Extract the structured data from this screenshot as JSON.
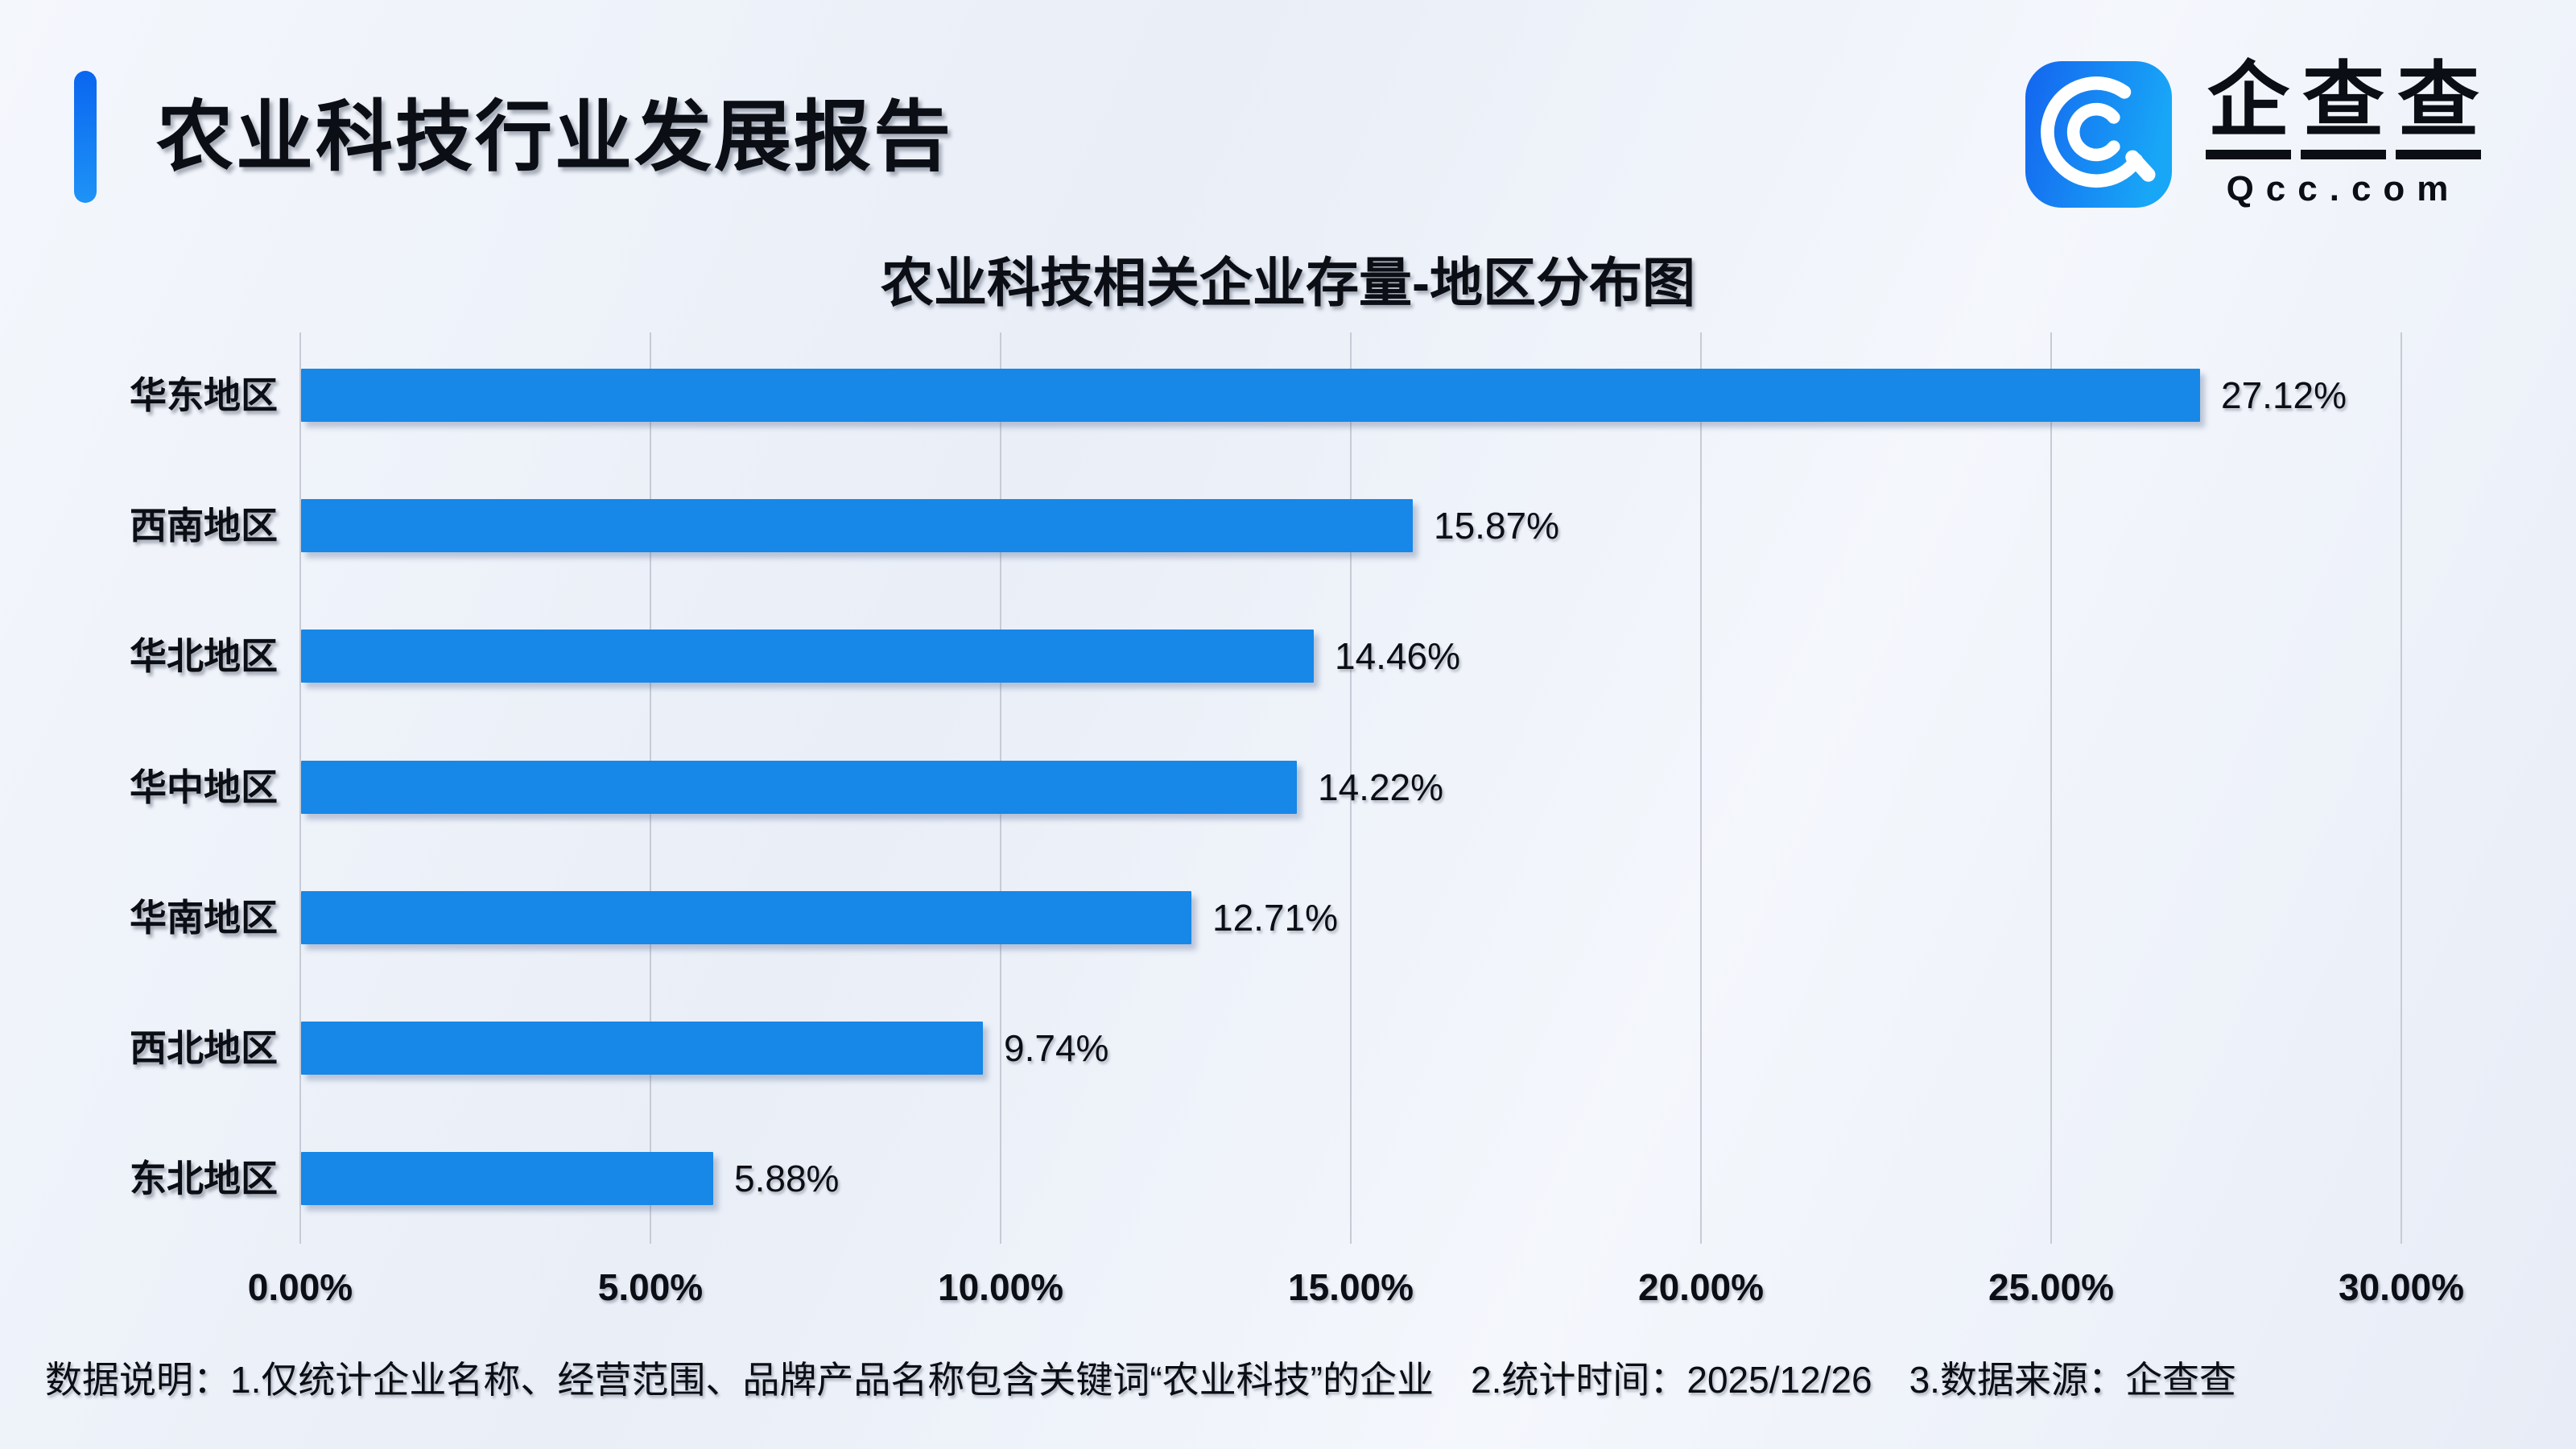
{
  "header": {
    "title": "农业科技行业发展报告"
  },
  "logo": {
    "brand_cn": "企查查",
    "brand_en": "Qcc.com",
    "icon": "qcc-spiral-q-icon",
    "icon_gradient": [
      "#1465ef",
      "#18a6f7"
    ]
  },
  "chart_data": {
    "type": "bar",
    "orientation": "horizontal",
    "title": "农业科技相关企业存量-地区分布图",
    "categories": [
      "华东地区",
      "西南地区",
      "华北地区",
      "华中地区",
      "华南地区",
      "西北地区",
      "东北地区"
    ],
    "values": [
      27.12,
      15.87,
      14.46,
      14.22,
      12.71,
      9.74,
      5.88
    ],
    "value_labels": [
      "27.12%",
      "15.87%",
      "14.46%",
      "14.22%",
      "12.71%",
      "9.74%",
      "5.88%"
    ],
    "x_ticks": [
      "0.00%",
      "5.00%",
      "10.00%",
      "15.00%",
      "20.00%",
      "25.00%",
      "30.00%"
    ],
    "x_tick_values": [
      0,
      5,
      10,
      15,
      20,
      25,
      30
    ],
    "xlim": [
      0,
      30
    ],
    "xlabel": "",
    "ylabel": "",
    "grid": true,
    "legend": "none",
    "bar_color": "#1787e8"
  },
  "footer": {
    "note": "数据说明：1.仅统计企业名称、经营范围、品牌产品名称包含关键词“农业科技”的企业　2.统计时间：2025/12/26　3.数据来源：企查查"
  }
}
